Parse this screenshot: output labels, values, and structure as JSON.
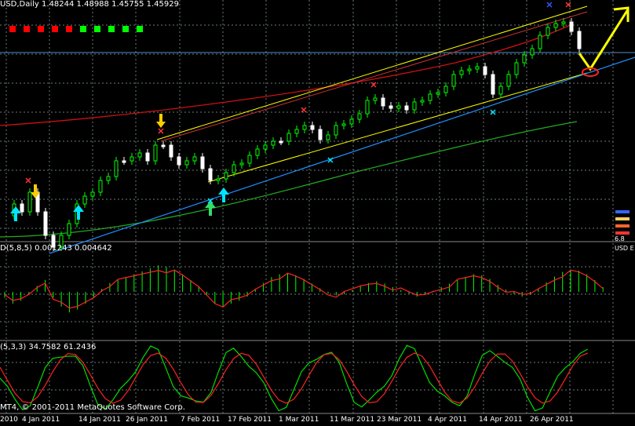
{
  "main_panel": {
    "header": "USD,Daily  1.48244 1.48988 1.45755 1.45929",
    "colors": {
      "background": "#000000",
      "grid": "#6a7a7a",
      "bull_candle": "#00ff00",
      "bear_candle": "#ffffff",
      "channel_upper": "#ffff00",
      "channel_lower": "#1e90ff",
      "ma_red": "#cc1111",
      "ma_green": "#22aa22"
    },
    "signal_boxes": [
      "#ff0000",
      "#ff0000",
      "#ff0000",
      "#ff0000",
      "#ff0000",
      "#00ff00",
      "#00ff00",
      "#00ff00",
      "#00ff00",
      "#00ff00"
    ],
    "right_legend": {
      "line1": "6.8",
      "line2": "USD  E"
    }
  },
  "osma_panel": {
    "header": "D(5,8,5) 0.001243 0.004642"
  },
  "stoch_panel": {
    "header": "(5,3,3) 34.7582 61.2436"
  },
  "copyright": "MT4, © 2001-2011 MetaQuotes Software Corp.",
  "x_axis": {
    "labels": [
      "2010",
      "4 Jan 2011",
      "14 Jan 2011",
      "26 Jan 2011",
      "7 Feb 2011",
      "17 Feb 2011",
      "1 Mar 2011",
      "11 Mar 2011",
      "23 Mar 2011",
      "4 Apr 2011",
      "14 Apr 2011",
      "26 Apr 2011"
    ]
  }
}
